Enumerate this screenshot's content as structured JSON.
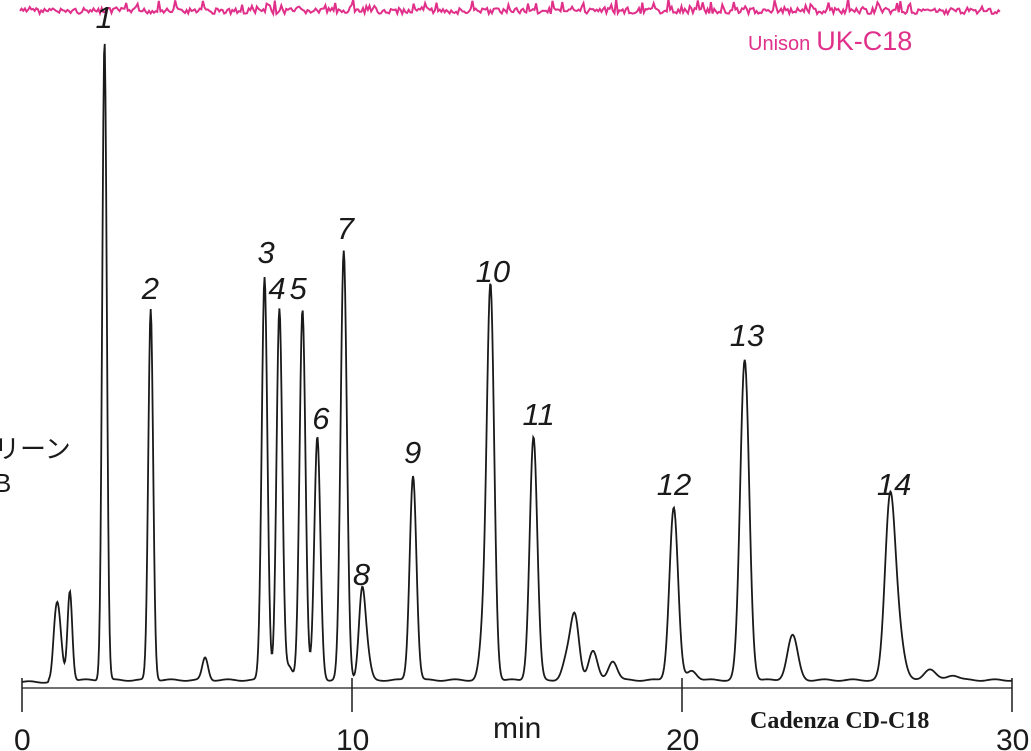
{
  "chart_data": {
    "type": "line",
    "xlabel": "min",
    "xlim": [
      0,
      30
    ],
    "x_ticks": [
      0,
      10,
      20,
      30
    ],
    "ylim": [
      0,
      100
    ],
    "colors": {
      "lower_trace": "#1a1a1a",
      "upper_trace": "#e0308a"
    },
    "series": [
      {
        "name": "Cadenza CD-C18",
        "peaks": [
          {
            "label": "1",
            "x": 2.5,
            "y": 100
          },
          {
            "label": "2",
            "x": 3.9,
            "y": 58
          },
          {
            "label": "3",
            "x": 7.35,
            "y": 63
          },
          {
            "label": "4",
            "x": 7.8,
            "y": 58
          },
          {
            "label": "5",
            "x": 8.5,
            "y": 58
          },
          {
            "label": "6",
            "x": 8.95,
            "y": 38
          },
          {
            "label": "7",
            "x": 9.75,
            "y": 67
          },
          {
            "label": "8",
            "x": 10.3,
            "y": 13
          },
          {
            "label": "9",
            "x": 11.85,
            "y": 32
          },
          {
            "label": "10",
            "x": 14.2,
            "y": 60
          },
          {
            "label": "11",
            "x": 15.5,
            "y": 38
          },
          {
            "label": "12",
            "x": 19.75,
            "y": 27
          },
          {
            "label": "13",
            "x": 21.9,
            "y": 50
          },
          {
            "label": "14",
            "x": 26.3,
            "y": 27
          }
        ]
      },
      {
        "name": "Unison UK-C18"
      }
    ],
    "side_label": [
      "リーン",
      "B"
    ]
  }
}
